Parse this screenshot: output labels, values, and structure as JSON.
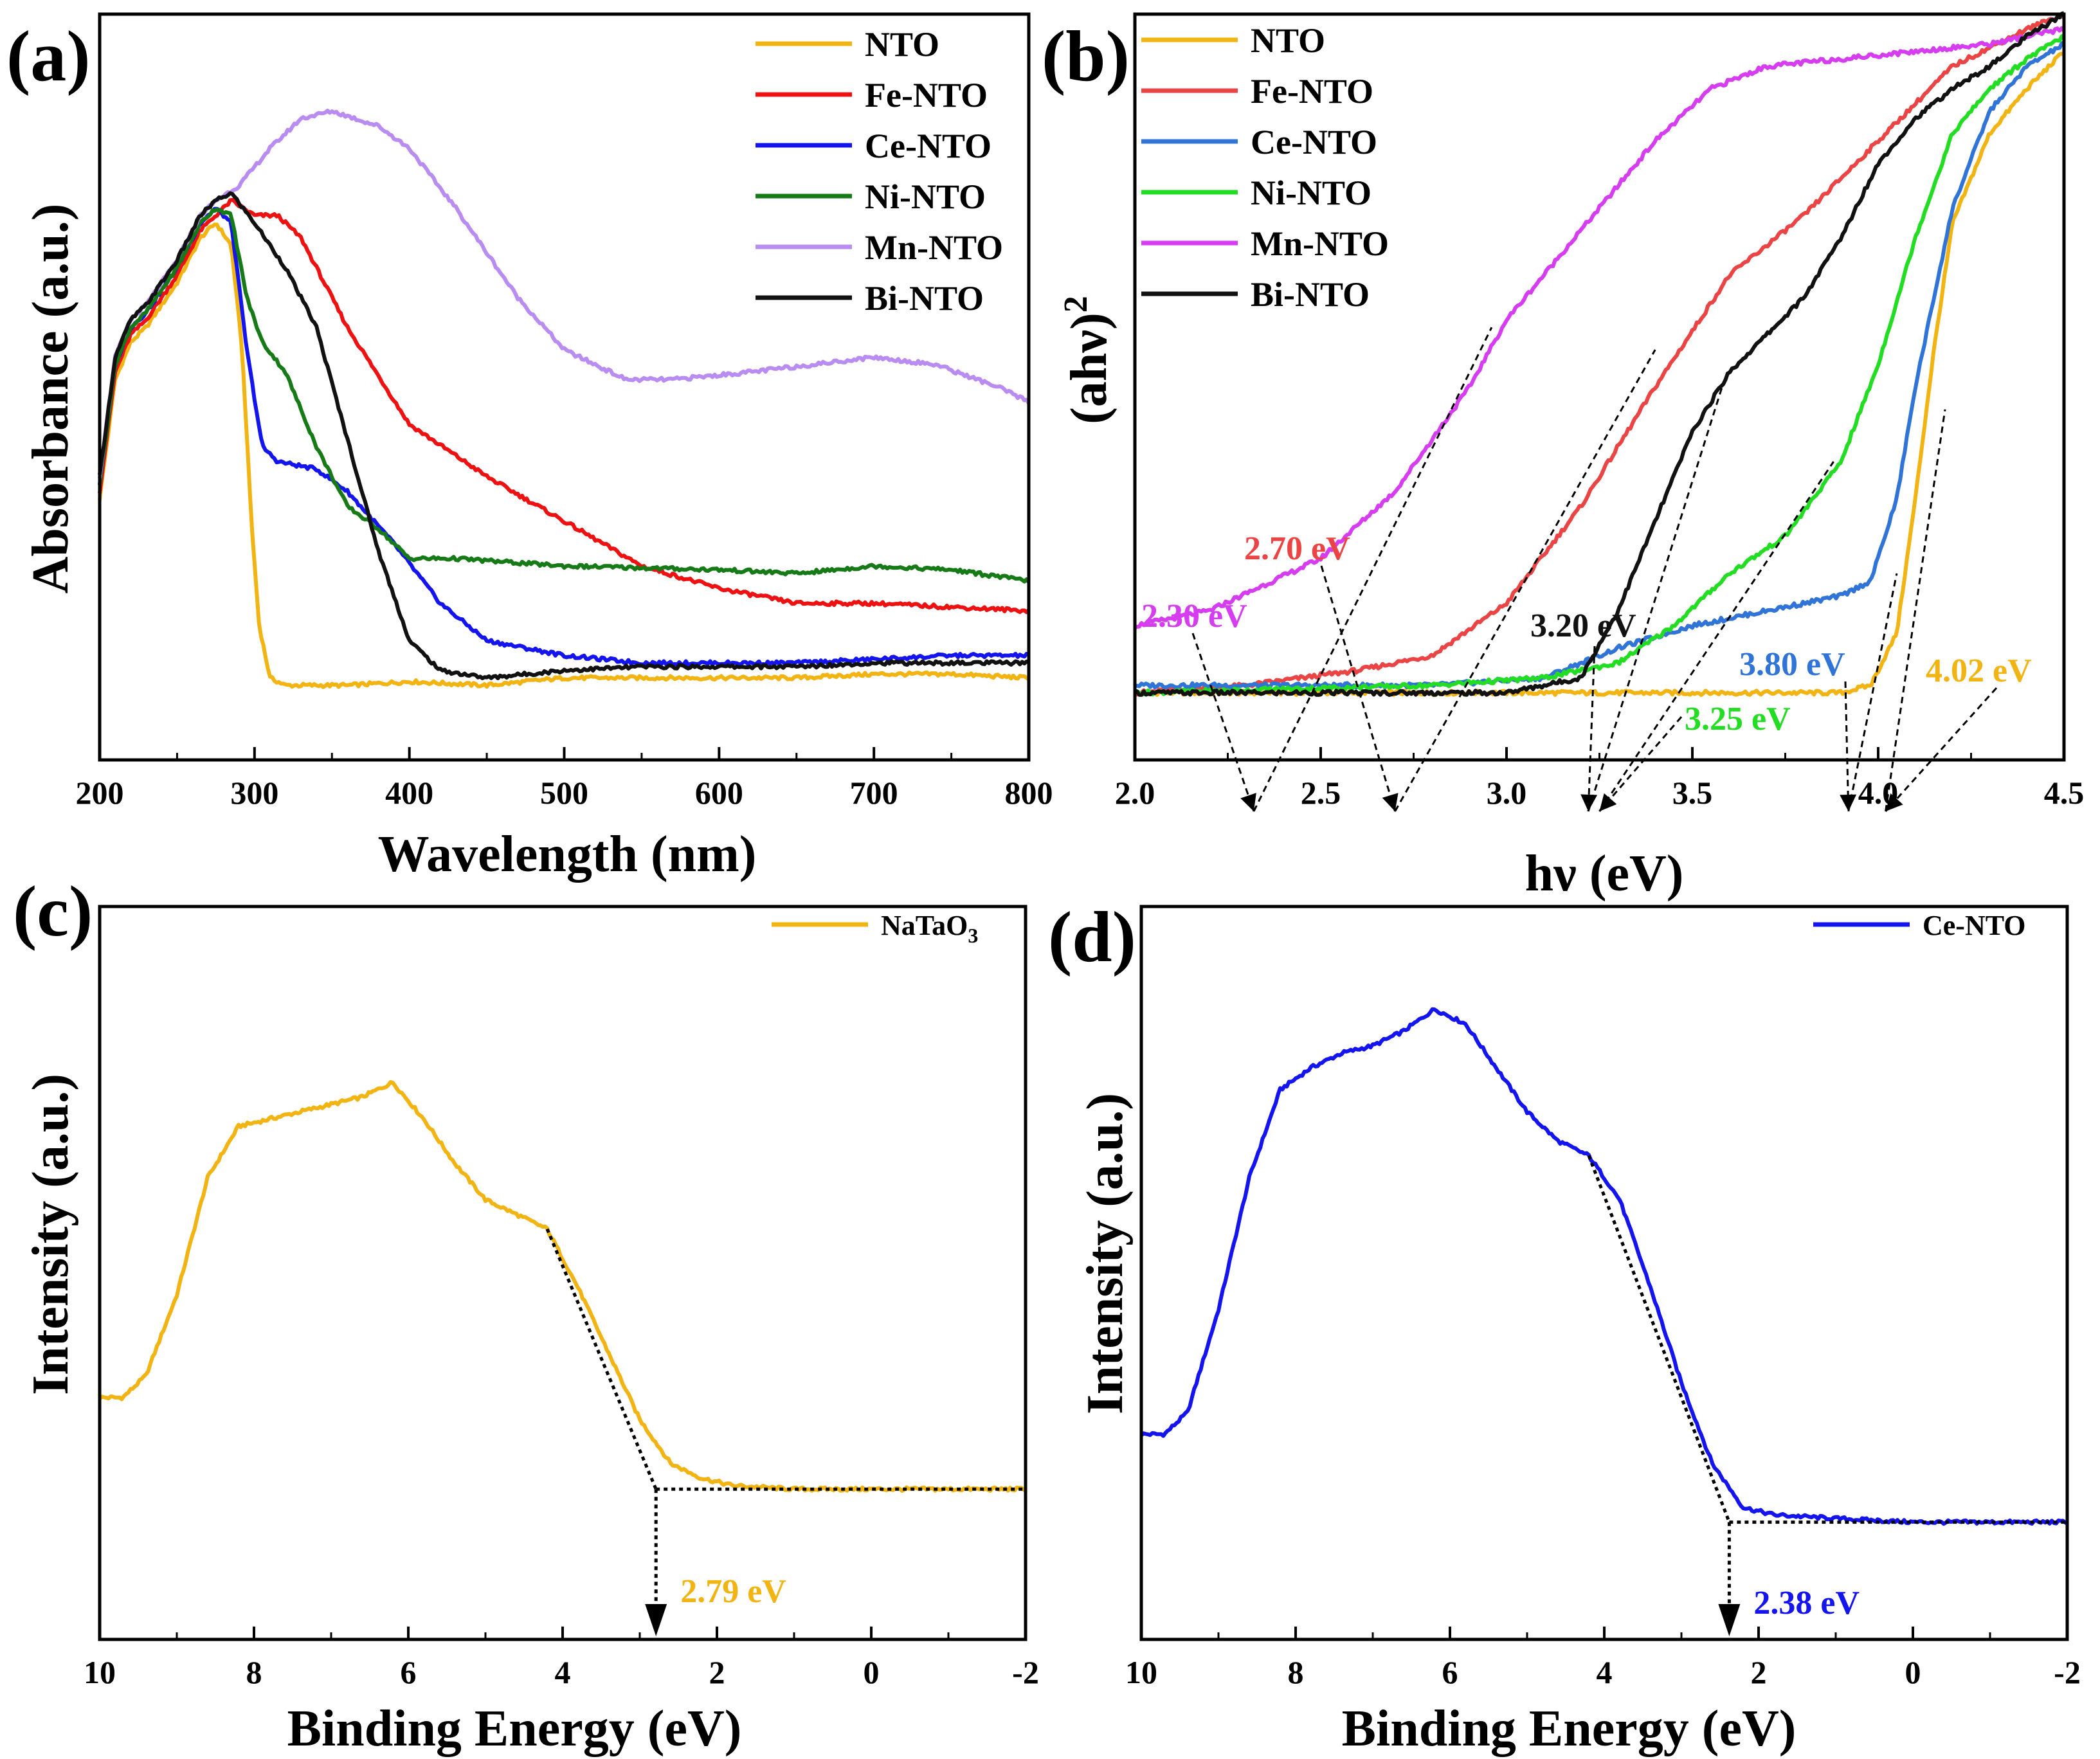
{
  "colors": {
    "NTO": "#f2b412",
    "Fe-NTO": "#ee1111",
    "Ce-NTO": "#1414ee",
    "Ni-NTO": "#167a16",
    "Mn-NTO": "#b98cf2",
    "Bi-NTO": "#111111",
    "Fe-NTO-b": "#ea4444",
    "Ce-NTO-b": "#2f74d6",
    "Ni-NTO-b": "#22dd22",
    "Mn-NTO-b": "#d63cf0"
  },
  "chart_data": [
    {
      "panel": "(a)",
      "type": "line",
      "xlabel": "Wavelength (nm)",
      "ylabel": "Absorbance  (a.u.)",
      "xlim": [
        200,
        800
      ],
      "ylim": [
        0,
        1.0
      ],
      "xticks": [
        200,
        300,
        400,
        500,
        600,
        700,
        800
      ],
      "legend_position": "top-right",
      "series": [
        {
          "name": "NTO",
          "x": [
            200,
            210,
            220,
            230,
            250,
            265,
            275,
            285,
            292,
            298,
            303,
            310,
            320,
            330,
            360,
            400,
            450,
            500,
            600,
            650,
            700,
            750,
            800
          ],
          "y": [
            0.35,
            0.51,
            0.56,
            0.58,
            0.64,
            0.7,
            0.72,
            0.69,
            0.55,
            0.32,
            0.18,
            0.11,
            0.1,
            0.1,
            0.1,
            0.105,
            0.1,
            0.11,
            0.11,
            0.11,
            0.115,
            0.115,
            0.11
          ]
        },
        {
          "name": "Fe-NTO",
          "x": [
            200,
            210,
            220,
            230,
            250,
            265,
            275,
            285,
            300,
            315,
            330,
            360,
            400,
            450,
            500,
            550,
            600,
            650,
            700,
            750,
            800
          ],
          "y": [
            0.36,
            0.52,
            0.57,
            0.59,
            0.65,
            0.71,
            0.73,
            0.75,
            0.73,
            0.73,
            0.7,
            0.58,
            0.45,
            0.38,
            0.32,
            0.26,
            0.23,
            0.21,
            0.21,
            0.205,
            0.2
          ]
        },
        {
          "name": "Ce-NTO",
          "x": [
            200,
            210,
            220,
            230,
            250,
            265,
            275,
            285,
            295,
            305,
            315,
            340,
            360,
            390,
            420,
            450,
            500,
            550,
            600,
            650,
            700,
            750,
            800
          ],
          "y": [
            0.37,
            0.53,
            0.58,
            0.6,
            0.66,
            0.72,
            0.74,
            0.72,
            0.55,
            0.42,
            0.4,
            0.39,
            0.36,
            0.29,
            0.21,
            0.16,
            0.14,
            0.13,
            0.13,
            0.13,
            0.135,
            0.14,
            0.14
          ]
        },
        {
          "name": "Ni-NTO",
          "x": [
            200,
            210,
            220,
            230,
            250,
            265,
            275,
            285,
            295,
            305,
            320,
            340,
            360,
            380,
            400,
            430,
            500,
            600,
            650,
            700,
            750,
            800
          ],
          "y": [
            0.37,
            0.53,
            0.58,
            0.6,
            0.66,
            0.72,
            0.74,
            0.73,
            0.62,
            0.56,
            0.52,
            0.42,
            0.34,
            0.31,
            0.27,
            0.27,
            0.26,
            0.255,
            0.25,
            0.26,
            0.255,
            0.24
          ]
        },
        {
          "name": "Mn-NTO",
          "x": [
            200,
            210,
            220,
            230,
            250,
            265,
            275,
            290,
            310,
            330,
            350,
            380,
            400,
            430,
            470,
            500,
            540,
            570,
            620,
            660,
            700,
            740,
            780,
            800
          ],
          "y": [
            0.38,
            0.54,
            0.59,
            0.61,
            0.67,
            0.73,
            0.75,
            0.77,
            0.82,
            0.86,
            0.87,
            0.85,
            0.82,
            0.74,
            0.62,
            0.55,
            0.51,
            0.51,
            0.52,
            0.53,
            0.54,
            0.53,
            0.5,
            0.48
          ]
        },
        {
          "name": "Bi-NTO",
          "x": [
            200,
            210,
            220,
            230,
            250,
            265,
            275,
            285,
            300,
            320,
            340,
            360,
            380,
            400,
            420,
            450,
            500,
            550,
            600,
            650,
            700,
            750,
            800
          ],
          "y": [
            0.38,
            0.54,
            0.59,
            0.61,
            0.67,
            0.73,
            0.75,
            0.76,
            0.72,
            0.66,
            0.58,
            0.43,
            0.28,
            0.16,
            0.12,
            0.11,
            0.12,
            0.125,
            0.125,
            0.125,
            0.13,
            0.13,
            0.13
          ]
        }
      ]
    },
    {
      "panel": "(b)",
      "type": "line",
      "xlabel": "hν (eV)",
      "ylabel": "(ahν)",
      "ylabel_superscript": "2",
      "xlim": [
        2.0,
        4.5
      ],
      "ylim": [
        0,
        1.0
      ],
      "xticks": [
        "2.0",
        "2.5",
        "3.0",
        "3.5",
        "4.0",
        "4.5"
      ],
      "legend_position": "top-left",
      "series": [
        {
          "name": "NTO",
          "x": [
            2.0,
            2.5,
            3.0,
            3.5,
            3.9,
            3.98,
            4.05,
            4.1,
            4.15,
            4.2,
            4.3,
            4.4,
            4.5
          ],
          "y": [
            0.09,
            0.09,
            0.09,
            0.09,
            0.09,
            0.1,
            0.17,
            0.35,
            0.55,
            0.72,
            0.84,
            0.9,
            0.95
          ]
        },
        {
          "name": "Fe-NTO",
          "x": [
            2.0,
            2.3,
            2.6,
            2.8,
            3.0,
            3.2,
            3.4,
            3.6,
            3.8,
            4.0,
            4.2,
            4.4,
            4.5
          ],
          "y": [
            0.09,
            0.1,
            0.12,
            0.14,
            0.21,
            0.34,
            0.5,
            0.65,
            0.73,
            0.83,
            0.93,
            0.98,
            1.0
          ]
        },
        {
          "name": "Ce-NTO",
          "x": [
            2.0,
            2.8,
            3.1,
            3.3,
            3.5,
            3.7,
            3.9,
            3.98,
            4.05,
            4.1,
            4.2,
            4.3,
            4.4,
            4.5
          ],
          "y": [
            0.1,
            0.1,
            0.11,
            0.15,
            0.18,
            0.2,
            0.22,
            0.24,
            0.35,
            0.5,
            0.74,
            0.87,
            0.93,
            0.96
          ]
        },
        {
          "name": "Ni-NTO",
          "x": [
            2.0,
            2.8,
            3.1,
            3.3,
            3.45,
            3.6,
            3.75,
            3.9,
            4.0,
            4.1,
            4.2,
            4.3,
            4.4,
            4.5
          ],
          "y": [
            0.09,
            0.1,
            0.11,
            0.13,
            0.18,
            0.25,
            0.3,
            0.4,
            0.53,
            0.7,
            0.84,
            0.9,
            0.94,
            0.97
          ]
        },
        {
          "name": "Mn-NTO",
          "x": [
            2.0,
            2.2,
            2.5,
            2.7,
            2.9,
            3.0,
            3.2,
            3.4,
            3.55,
            3.7,
            3.9,
            4.1,
            4.3,
            4.5
          ],
          "y": [
            0.18,
            0.2,
            0.27,
            0.36,
            0.5,
            0.59,
            0.71,
            0.83,
            0.9,
            0.93,
            0.94,
            0.95,
            0.96,
            0.98
          ]
        },
        {
          "name": "Bi-NTO",
          "x": [
            2.0,
            3.0,
            3.2,
            3.3,
            3.4,
            3.5,
            3.6,
            3.7,
            3.8,
            3.9,
            4.0,
            4.1,
            4.2,
            4.3,
            4.4,
            4.5
          ],
          "y": [
            0.09,
            0.09,
            0.11,
            0.2,
            0.32,
            0.44,
            0.52,
            0.57,
            0.62,
            0.7,
            0.8,
            0.86,
            0.9,
            0.93,
            0.97,
            1.0
          ]
        }
      ],
      "annotations": [
        {
          "text": "2.30 eV",
          "series": "Mn-NTO",
          "value": 2.3
        },
        {
          "text": "2.70 eV",
          "series": "Fe-NTO",
          "value": 2.7
        },
        {
          "text": "3.20 eV",
          "series": "Bi-NTO",
          "value": 3.2
        },
        {
          "text": "3.25 eV",
          "series": "Ni-NTO",
          "value": 3.25
        },
        {
          "text": "3.80 eV",
          "series": "Ce-NTO",
          "value": 3.8
        },
        {
          "text": "4.02 eV",
          "series": "NTO",
          "value": 4.02
        }
      ]
    },
    {
      "panel": "(c)",
      "type": "line",
      "xlabel": "Binding Energy (eV)",
      "ylabel": "Intensity (a.u.)",
      "xlim": [
        10,
        -2
      ],
      "ylim": [
        0,
        1.0
      ],
      "xticks": [
        10,
        8,
        6,
        4,
        2,
        0,
        -2
      ],
      "legend_position": "top-right",
      "legend": "NaTaO",
      "legend_subscript": "3",
      "series": [
        {
          "name": "NaTaO3",
          "x": [
            10,
            9.7,
            9.4,
            9.0,
            8.6,
            8.2,
            7.8,
            7.4,
            7.0,
            6.6,
            6.2,
            5.8,
            5.4,
            5.0,
            4.6,
            4.2,
            3.8,
            3.4,
            3.0,
            2.6,
            2.2,
            1.8,
            1.0,
            0,
            -2
          ],
          "y": [
            0.33,
            0.33,
            0.36,
            0.47,
            0.63,
            0.7,
            0.71,
            0.72,
            0.73,
            0.74,
            0.76,
            0.71,
            0.65,
            0.6,
            0.58,
            0.56,
            0.48,
            0.39,
            0.3,
            0.24,
            0.22,
            0.21,
            0.205,
            0.205,
            0.205
          ]
        }
      ],
      "annotations": [
        {
          "text": "2.79 eV",
          "value": 2.79
        }
      ]
    },
    {
      "panel": "(d)",
      "type": "line",
      "xlabel": "Binding Energy (eV)",
      "ylabel": "Intensity (a.u.)",
      "xlim": [
        10,
        -2
      ],
      "ylim": [
        0,
        1.0
      ],
      "xticks": [
        10,
        8,
        6,
        4,
        2,
        0,
        -2
      ],
      "legend_position": "top-right",
      "legend": "Ce-NTO",
      "series": [
        {
          "name": "Ce-NTO",
          "x": [
            10,
            9.7,
            9.4,
            9.0,
            8.6,
            8.2,
            7.8,
            7.4,
            7.0,
            6.6,
            6.2,
            5.8,
            5.4,
            5.0,
            4.6,
            4.2,
            3.8,
            3.4,
            3.0,
            2.6,
            2.2,
            1.8,
            1.0,
            0,
            -2
          ],
          "y": [
            0.28,
            0.28,
            0.31,
            0.45,
            0.63,
            0.75,
            0.78,
            0.8,
            0.81,
            0.83,
            0.86,
            0.84,
            0.78,
            0.72,
            0.68,
            0.66,
            0.6,
            0.48,
            0.35,
            0.24,
            0.18,
            0.17,
            0.165,
            0.16,
            0.16
          ]
        }
      ],
      "annotations": [
        {
          "text": "2.38 eV",
          "value": 2.38
        }
      ]
    }
  ],
  "panel_labels": {
    "a": "(a)",
    "b": "(b)",
    "c": "(c)",
    "d": "(d)"
  }
}
